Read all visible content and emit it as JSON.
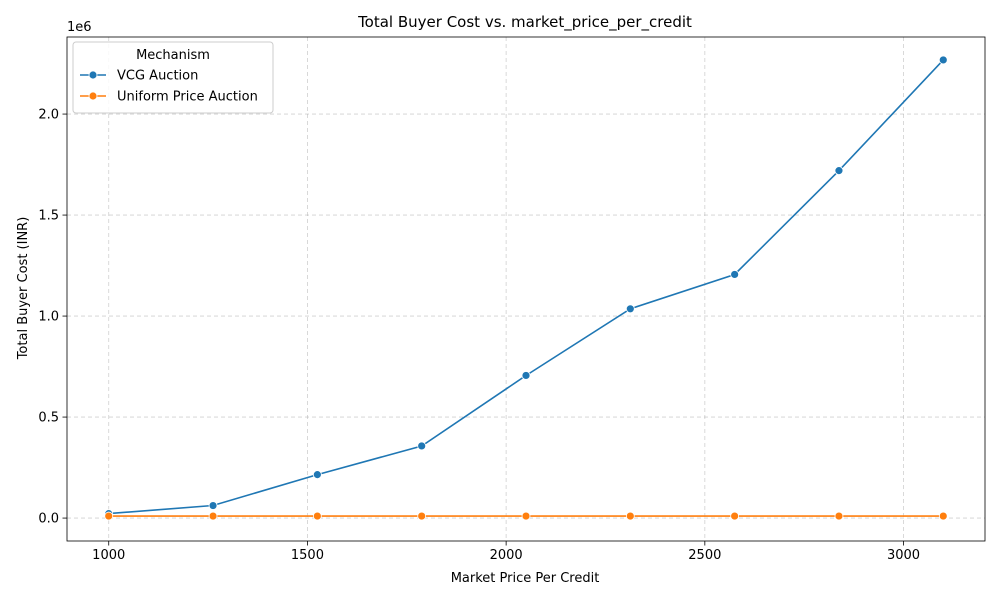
{
  "chart_data": {
    "type": "line",
    "title": "Total Buyer Cost vs. market_price_per_credit",
    "xlabel": "Market Price Per Credit",
    "ylabel": "Total Buyer Cost (INR)",
    "y_offset_label": "1e6",
    "xlim": [
      1000,
      3100
    ],
    "ylim": [
      0,
      2270000
    ],
    "x_ticks": [
      1000,
      1500,
      2000,
      2500,
      3000
    ],
    "x_tick_labels": [
      "1000",
      "1500",
      "2000",
      "2500",
      "3000"
    ],
    "y_ticks": [
      0,
      500000,
      1000000,
      1500000,
      2000000
    ],
    "y_tick_labels": [
      "0.0",
      "0.5",
      "1.0",
      "1.5",
      "2.0"
    ],
    "grid": true,
    "legend": {
      "title": "Mechanism",
      "position": "top-left"
    },
    "x": [
      1000,
      1262.5,
      1525,
      1787.5,
      2050,
      2312.5,
      2575,
      2837.5,
      3100
    ],
    "series": [
      {
        "name": "VCG Auction",
        "color": "#1f77b4",
        "values": [
          22000,
          62000,
          215000,
          357000,
          706000,
          1036000,
          1206000,
          1720000,
          2268000
        ]
      },
      {
        "name": "Uniform Price Auction",
        "color": "#ff7f0e",
        "values": [
          10000,
          10000,
          10000,
          10000,
          10000,
          10000,
          10000,
          10000,
          10000
        ]
      }
    ]
  }
}
